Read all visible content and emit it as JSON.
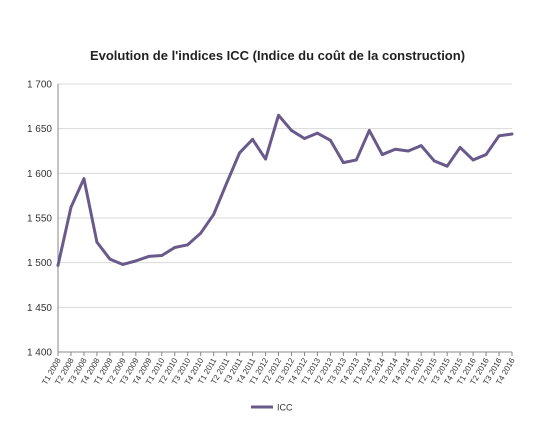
{
  "chart_data": {
    "type": "line",
    "title": "Evolution de l'indices ICC (Indice du coût de la construction)",
    "xlabel": "",
    "ylabel": "",
    "ylim": [
      1400,
      1700
    ],
    "yticks": [
      1400,
      1450,
      1500,
      1550,
      1600,
      1650,
      1700
    ],
    "ytick_labels": [
      "1 400",
      "1 450",
      "1 500",
      "1 550",
      "1 600",
      "1 650",
      "1 700"
    ],
    "grid": "horizontal",
    "legend": "bottom",
    "categories": [
      "T1 2008",
      "T2 2008",
      "T3 2008",
      "T4 2008",
      "T1 2009",
      "T2 2009",
      "T3 2009",
      "T4 2009",
      "T1 2010",
      "T2 2010",
      "T3 2010",
      "T4 2010",
      "T1 2011",
      "T2 2011",
      "T3 2011",
      "T4 2011",
      "T1 2012",
      "T2 2012",
      "T3 2012",
      "T4 2012",
      "T1 2013",
      "T2 2013",
      "T3 2013",
      "T4 2013",
      "T1 2014",
      "T2 2014",
      "T3 2014",
      "T4 2014",
      "T1 2015",
      "T2 2015",
      "T3 2015",
      "T4 2015",
      "T1 2016",
      "T2 2016",
      "T3 2016",
      "T4 2016"
    ],
    "series": [
      {
        "name": "ICC",
        "color": "#6a5a8c",
        "values": [
          1497,
          1562,
          1594,
          1523,
          1504,
          1498,
          1502,
          1507,
          1508,
          1517,
          1520,
          1533,
          1554,
          1589,
          1623,
          1638,
          1616,
          1665,
          1648,
          1639,
          1645,
          1637,
          1612,
          1615,
          1648,
          1621,
          1627,
          1625,
          1631,
          1614,
          1608,
          1629,
          1615,
          1621,
          1642,
          1644
        ]
      }
    ]
  }
}
